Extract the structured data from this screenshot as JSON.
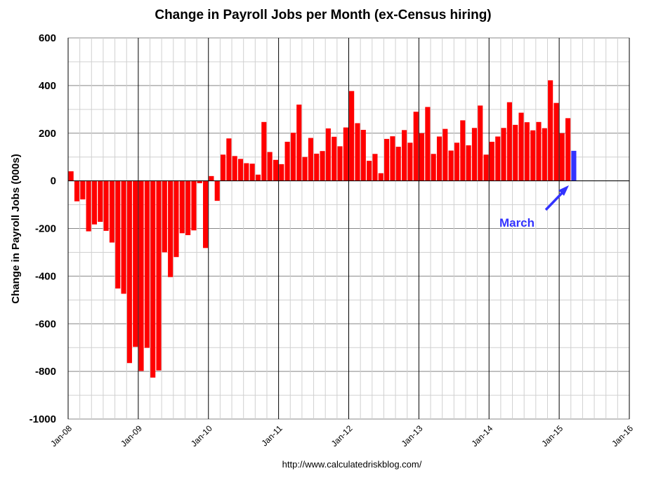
{
  "chart_data": {
    "type": "bar",
    "title": "Change in Payroll Jobs per Month (ex-Census hiring)",
    "xlabel": "",
    "ylabel": "Change in Payroll Jobs (000s)",
    "ylim": [
      -1000,
      600
    ],
    "yticks": [
      600,
      400,
      200,
      0,
      -200,
      -400,
      -600,
      -800,
      -1000
    ],
    "xlim": [
      "Jan-08",
      "Jan-16"
    ],
    "xtick_labels": [
      "Jan-08",
      "Jan-09",
      "Jan-10",
      "Jan-11",
      "Jan-12",
      "Jan-13",
      "Jan-14",
      "Jan-15",
      "Jan-16"
    ],
    "grid": true,
    "start_month": "Jan-08",
    "series": [
      {
        "color": "#ff0000",
        "values": [
          40,
          -86,
          -78,
          -212,
          -183,
          -172,
          -210,
          -259,
          -452,
          -474,
          -765,
          -697,
          -798,
          -701,
          -826,
          -796,
          -300,
          -404,
          -320,
          -220,
          -228,
          -208,
          -10,
          -282,
          20,
          -84,
          110,
          178,
          104,
          92,
          74,
          72,
          26,
          247,
          121,
          88,
          70,
          164,
          202,
          320,
          100,
          180,
          114,
          125,
          220,
          185,
          145,
          224,
          377,
          242,
          214,
          84,
          113,
          32,
          176,
          187,
          143,
          213,
          160,
          290,
          200,
          310,
          113,
          186,
          218,
          127,
          160,
          254,
          149,
          222,
          316,
          110,
          164,
          186,
          222,
          330,
          235,
          286,
          246,
          212,
          247,
          221,
          422,
          327,
          200,
          263
        ]
      },
      {
        "color": "#3333ff",
        "values": [
          null,
          null,
          null,
          null,
          null,
          null,
          null,
          null,
          null,
          null,
          null,
          null,
          null,
          null,
          null,
          null,
          null,
          null,
          null,
          null,
          null,
          null,
          null,
          null,
          null,
          null,
          null,
          null,
          null,
          null,
          null,
          null,
          null,
          null,
          null,
          null,
          null,
          null,
          null,
          null,
          null,
          null,
          null,
          null,
          null,
          null,
          null,
          null,
          null,
          null,
          null,
          null,
          null,
          null,
          null,
          null,
          null,
          null,
          null,
          null,
          null,
          null,
          null,
          null,
          null,
          null,
          null,
          null,
          null,
          null,
          null,
          null,
          null,
          null,
          null,
          null,
          null,
          null,
          null,
          null,
          null,
          null,
          null,
          null,
          null,
          null,
          126
        ]
      }
    ],
    "annotation": {
      "text": "March",
      "color": "#3333ff",
      "points_to": "Mar-15"
    },
    "source": "http://www.calculatedriskblog.com/"
  }
}
